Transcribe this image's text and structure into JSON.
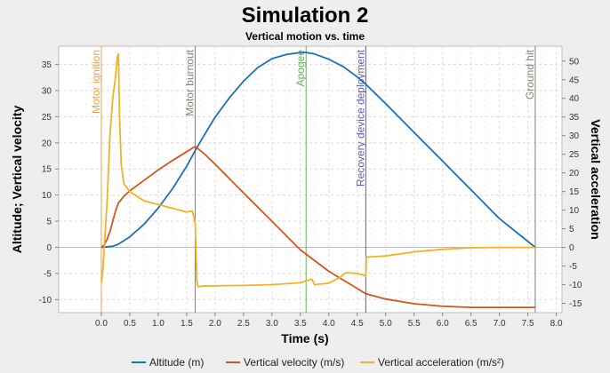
{
  "chart_data": {
    "type": "line",
    "title": "Simulation 2",
    "subtitle": "Vertical motion vs. time",
    "xlabel": "Time (s)",
    "ylabel_left": "Altitude; Vertical velocity",
    "ylabel_right": "Vertical acceleration",
    "xlim": [
      -0.75,
      8.1
    ],
    "ylim_left": [
      -12.5,
      38.5
    ],
    "ylim_right": [
      -17.5,
      54
    ],
    "x_ticks": [
      0.0,
      0.5,
      1.0,
      1.5,
      2.0,
      2.5,
      3.0,
      3.5,
      4.0,
      4.5,
      5.0,
      5.5,
      6.0,
      6.5,
      7.0,
      7.5,
      8.0
    ],
    "x_tick_labels": [
      "0.0",
      "0.5",
      "1.0",
      "1.5",
      "2.0",
      "2.5",
      "3.0",
      "3.5",
      "4.0",
      "4.5",
      "5.0",
      "5.5",
      "6.0",
      "6.5",
      "7.0",
      "7.5",
      "8.0"
    ],
    "y_left_ticks": [
      -10,
      -5,
      0,
      5,
      10,
      15,
      20,
      25,
      30,
      35
    ],
    "y_right_ticks": [
      -15,
      -10,
      -5,
      0,
      5,
      10,
      15,
      20,
      25,
      30,
      35,
      40,
      45,
      50
    ],
    "grid": true,
    "legend_position": "bottom",
    "series": [
      {
        "name": "Altitude (m)",
        "axis": "left",
        "color": "#1f6fb5",
        "x": [
          0.0,
          0.2,
          0.3,
          0.5,
          0.75,
          1.0,
          1.25,
          1.5,
          1.65,
          1.8,
          2.0,
          2.25,
          2.5,
          2.75,
          3.0,
          3.25,
          3.5,
          3.6,
          3.75,
          4.0,
          4.25,
          4.5,
          4.65,
          5.0,
          5.5,
          6.0,
          6.5,
          7.0,
          7.63
        ],
        "y": [
          0.0,
          0.2,
          0.6,
          2.0,
          4.4,
          7.5,
          11.2,
          15.5,
          18.5,
          21.3,
          24.9,
          28.6,
          31.8,
          34.4,
          36.1,
          36.9,
          37.3,
          37.3,
          37.0,
          36.0,
          34.6,
          32.6,
          31.2,
          27.5,
          22.0,
          16.5,
          11.0,
          5.5,
          0.0
        ]
      },
      {
        "name": "Vertical velocity (m/s)",
        "axis": "left",
        "color": "#d2561f",
        "x": [
          0.0,
          0.05,
          0.1,
          0.15,
          0.2,
          0.25,
          0.3,
          0.4,
          0.5,
          0.75,
          1.0,
          1.25,
          1.5,
          1.65,
          1.8,
          2.0,
          2.5,
          3.0,
          3.5,
          4.0,
          4.5,
          4.65,
          5.0,
          5.5,
          6.0,
          6.5,
          7.0,
          7.63
        ],
        "y": [
          0.0,
          0.5,
          1.5,
          3.0,
          5.0,
          7.0,
          8.5,
          9.8,
          10.8,
          12.8,
          14.8,
          16.6,
          18.3,
          19.3,
          18.0,
          15.9,
          10.4,
          5.0,
          -0.5,
          -4.6,
          -7.9,
          -8.9,
          -9.9,
          -10.8,
          -11.3,
          -11.5,
          -11.5,
          -11.5
        ]
      },
      {
        "name": "Vertical acceleration (m/s²)",
        "axis": "right",
        "color": "#f1b324",
        "x": [
          0.0,
          0.02,
          0.05,
          0.1,
          0.15,
          0.2,
          0.25,
          0.28,
          0.3,
          0.32,
          0.35,
          0.4,
          0.5,
          0.75,
          1.0,
          1.25,
          1.5,
          1.6,
          1.65,
          1.68,
          1.7,
          1.75,
          2.0,
          2.5,
          3.0,
          3.5,
          3.7,
          3.75,
          4.0,
          4.2,
          4.3,
          4.5,
          4.62,
          4.65,
          4.66,
          5.0,
          5.5,
          6.0,
          6.5,
          7.0,
          7.63
        ],
        "y": [
          -9.5,
          -7.5,
          0,
          12,
          30,
          40,
          46,
          51,
          52,
          35,
          22,
          17,
          15,
          12.5,
          11.5,
          10.5,
          9.5,
          9.8,
          6.5,
          -9,
          -10.6,
          -10.4,
          -10.3,
          -10.2,
          -10.0,
          -9.5,
          -8.5,
          -10,
          -9.6,
          -8.0,
          -6.8,
          -7.0,
          -7.5,
          -7.7,
          -2.6,
          -2.3,
          -1.2,
          -0.5,
          -0.1,
          0.0,
          0.0
        ]
      }
    ],
    "events": [
      {
        "label": "Motor ignition",
        "x": 0.0,
        "color": "#e8a24c"
      },
      {
        "label": "Motor burnout",
        "x": 1.65,
        "color": "#8a7f74"
      },
      {
        "label": "Apogee",
        "x": 3.6,
        "color": "#67b15e"
      },
      {
        "label": "Recovery device deployment",
        "x": 4.65,
        "color": "#5b5bb0"
      },
      {
        "label": "Ground hit",
        "x": 7.63,
        "color": "#8a7f74"
      }
    ]
  }
}
